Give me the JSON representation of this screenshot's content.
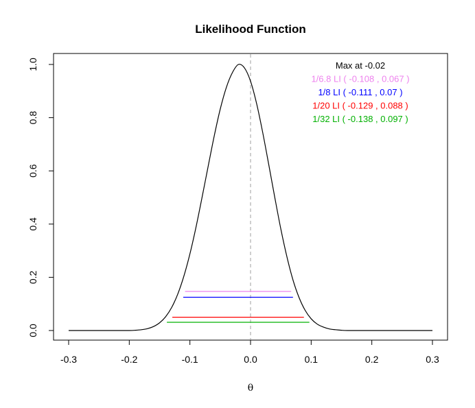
{
  "chart_data": {
    "type": "line",
    "title": "Likelihood Function",
    "xlabel": "θ",
    "ylabel": "",
    "xlim": [
      -0.3,
      0.3
    ],
    "ylim": [
      0,
      1
    ],
    "x_ticks": [
      -0.3,
      -0.2,
      -0.1,
      0.0,
      0.1,
      0.2,
      0.3
    ],
    "x_tick_labels": [
      "-0.3",
      "-0.2",
      "-0.1",
      "0.0",
      "0.1",
      "0.2",
      "0.3"
    ],
    "y_ticks": [
      0.0,
      0.2,
      0.4,
      0.6,
      0.8,
      1.0
    ],
    "y_tick_labels": [
      "0.0",
      "0.2",
      "0.4",
      "0.6",
      "0.8",
      "1.0"
    ],
    "grid": false,
    "curve": {
      "color": "#000000",
      "x": [
        -0.3,
        -0.28,
        -0.26,
        -0.24,
        -0.22,
        -0.2,
        -0.19,
        -0.18,
        -0.17,
        -0.16,
        -0.15,
        -0.14,
        -0.13,
        -0.12,
        -0.11,
        -0.1,
        -0.09,
        -0.08,
        -0.07,
        -0.06,
        -0.05,
        -0.04,
        -0.03,
        -0.02,
        -0.01,
        0.0,
        0.01,
        0.02,
        0.03,
        0.04,
        0.05,
        0.06,
        0.07,
        0.08,
        0.09,
        0.1,
        0.11,
        0.12,
        0.13,
        0.14,
        0.15,
        0.16,
        0.18,
        0.2,
        0.22,
        0.24,
        0.26,
        0.28,
        0.3
      ],
      "y": [
        0.0,
        0.0,
        0.0,
        0.0,
        0.0,
        0.0,
        0.001,
        0.003,
        0.007,
        0.015,
        0.029,
        0.052,
        0.087,
        0.137,
        0.204,
        0.288,
        0.388,
        0.5,
        0.616,
        0.73,
        0.832,
        0.913,
        0.969,
        1.0,
        0.987,
        0.937,
        0.853,
        0.745,
        0.624,
        0.5,
        0.381,
        0.277,
        0.19,
        0.124,
        0.076,
        0.044,
        0.024,
        0.013,
        0.006,
        0.003,
        0.001,
        0.0,
        0.0,
        0.0,
        0.0,
        0.0,
        0.0,
        0.0,
        0.0
      ]
    },
    "max_line": {
      "x": -0.02,
      "color": "#bfbfbf",
      "style": "dashed"
    },
    "likelihood_intervals": [
      {
        "level": 0.147,
        "lower": -0.108,
        "upper": 0.067,
        "color": "#ee82ee"
      },
      {
        "level": 0.125,
        "lower": -0.111,
        "upper": 0.07,
        "color": "#0000ff"
      },
      {
        "level": 0.05,
        "lower": -0.129,
        "upper": 0.088,
        "color": "#ff0000"
      },
      {
        "level": 0.031,
        "lower": -0.138,
        "upper": 0.097,
        "color": "#00b000"
      }
    ],
    "annotations": [
      {
        "text": "Max at   -0.02",
        "color": "#000000"
      },
      {
        "text": "1/6.8 LI ( -0.108 , 0.067 )",
        "color": "#ee82ee"
      },
      {
        "text": "1/8 LI ( -0.111 , 0.07 )",
        "color": "#0000ff"
      },
      {
        "text": "1/20 LI ( -0.129 , 0.088 )",
        "color": "#ff0000"
      },
      {
        "text": "1/32 LI ( -0.138 , 0.097 )",
        "color": "#00b000"
      }
    ]
  }
}
